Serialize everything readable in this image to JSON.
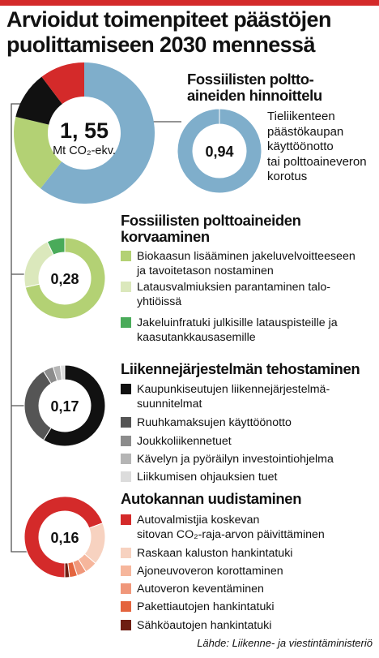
{
  "title": "Arvioidut toimenpiteet päästöjen puolittamiseen 2030 mennessä",
  "source": "Lähde: Liikenne- ja viestintäministeriö",
  "total": {
    "value": "1, 55",
    "unit": "Mt CO₂-ekv."
  },
  "chart_data": [
    {
      "type": "pie",
      "title": "Arvioidut toimenpiteet päästöjen puolittamiseen 2030 mennessä",
      "center_label": "1, 55 Mt CO₂-ekv.",
      "categories": [
        "Fossiilisten polttoaineiden hinnoittelu",
        "Fossiilisten polttoaineiden korvaaminen",
        "Liikennejärjestelmän tehostaminen",
        "Autokannan uudistaminen"
      ],
      "values": [
        0.94,
        0.28,
        0.17,
        0.16
      ],
      "colors": [
        "#7faecb",
        "#b3d174",
        "#111111",
        "#d42a2a"
      ]
    },
    {
      "type": "pie",
      "title": "Fossiilisten polttoaineiden hinnoittelu",
      "center_label": "0,94",
      "categories": [
        "Tieliikenteen päästökaupan käyttöönotto tai polttoaineveron korotus"
      ],
      "values": [
        0.94
      ],
      "colors": [
        "#7faecb"
      ]
    },
    {
      "type": "pie",
      "title": "Fossiilisten polttoaineiden korvaaminen",
      "center_label": "0,28",
      "categories": [
        "Biokaasun lisääminen jakeluvelvoitteeseen ja tavoitetason nostaminen",
        "Latausvalmiuksien parantaminen taloyhtiöissä",
        "Jakeluinfratuki julkisille latauspisteille ja kaasutankkausasemille"
      ],
      "values": [
        0.2,
        0.06,
        0.02
      ],
      "colors": [
        "#b3d174",
        "#dbe8bc",
        "#4aab5a"
      ]
    },
    {
      "type": "pie",
      "title": "Liikennejärjestelmän tehostaminen",
      "center_label": "0,17",
      "categories": [
        "Kaupunkiseutujen liikennejärjestelmäsuunnitelmat",
        "Ruuhkamaksujen käyttöönotto",
        "Joukkoliikennetuet",
        "Kävelyn ja pyöräilyn investointiohjelma",
        "Liikkumisen ohjauksien tuet"
      ],
      "values": [
        0.1,
        0.055,
        0.007,
        0.005,
        0.003
      ],
      "colors": [
        "#111111",
        "#555555",
        "#8c8c8c",
        "#b5b5b5",
        "#dcdcdc"
      ]
    },
    {
      "type": "pie",
      "title": "Autokannan uudistaminen",
      "center_label": "0,16",
      "categories": [
        "Autovalmistajia koskevan sitovan CO₂-raja-arvon päivittäminen",
        "Raskaan kaluston hankintatuki",
        "Ajoneuvoveron korottaminen",
        "Autoveron keventäminen",
        "Pakettiautojen hankintatuki",
        "Sähköautojen hankintatuki"
      ],
      "values": [
        0.111,
        0.027,
        0.008,
        0.006,
        0.005,
        0.003
      ],
      "colors": [
        "#d42a2a",
        "#f7d2c0",
        "#f6b69c",
        "#f0977a",
        "#e4643e",
        "#6e1e12"
      ]
    }
  ],
  "sections": [
    {
      "heading": "Fossiilisten polttoaineiden hinnoittelu",
      "heading_lines": [
        "Fossiilisten poltto-",
        "aineiden hinnoittelu"
      ],
      "value": "0,94",
      "description_lines": [
        "Tieliikenteen",
        "päästökaupan",
        "käyttöönotto",
        "tai polttoaineveron",
        "korotus"
      ]
    },
    {
      "heading": "Fossiilisten polttoaineiden korvaaminen",
      "heading_lines": [
        "Fossiilisten polttoaineiden",
        "korvaaminen"
      ],
      "value": "0,28",
      "items": [
        {
          "label": "Biokaasun lisääminen jakeluvelvoitteeseen\nja tavoitetason nostaminen",
          "color": "#b3d174"
        },
        {
          "label": "Latausvalmiuksien parantaminen talo-\nyhtiöissä",
          "color": "#dbe8bc"
        },
        {
          "label": "Jakeluinfratuki julkisille latauspisteille ja\nkaasutankkausasemille",
          "color": "#4aab5a"
        }
      ]
    },
    {
      "heading": "Liikennejärjestelmän tehostaminen",
      "value": "0,17",
      "items": [
        {
          "label": "Kaupunkiseutujen liikennejärjestelmä-\nsuunnitelmat",
          "color": "#111111"
        },
        {
          "label": "Ruuhkamaksujen käyttöönotto",
          "color": "#555555"
        },
        {
          "label": "Joukkoliikennetuet",
          "color": "#8c8c8c"
        },
        {
          "label": "Kävelyn ja pyöräilyn investointiohjelma",
          "color": "#b5b5b5"
        },
        {
          "label": "Liikkumisen ohjauksien tuet",
          "color": "#dcdcdc"
        }
      ]
    },
    {
      "heading": "Autokannan uudistaminen",
      "value": "0,16",
      "items": [
        {
          "label": "Autovalmistjia koskevan\nsitovan CO₂-raja-arvon päivittäminen",
          "color": "#d42a2a"
        },
        {
          "label": "Raskaan kaluston hankintatuki",
          "color": "#f7d2c0"
        },
        {
          "label": "Ajoneuvoveron korottaminen",
          "color": "#f6b69c"
        },
        {
          "label": "Autoveron keventäminen",
          "color": "#f0977a"
        },
        {
          "label": "Pakettiautojen hankintatuki",
          "color": "#e4643e"
        },
        {
          "label": "Sähköautojen hankintatuki",
          "color": "#6e1e12"
        }
      ]
    }
  ]
}
